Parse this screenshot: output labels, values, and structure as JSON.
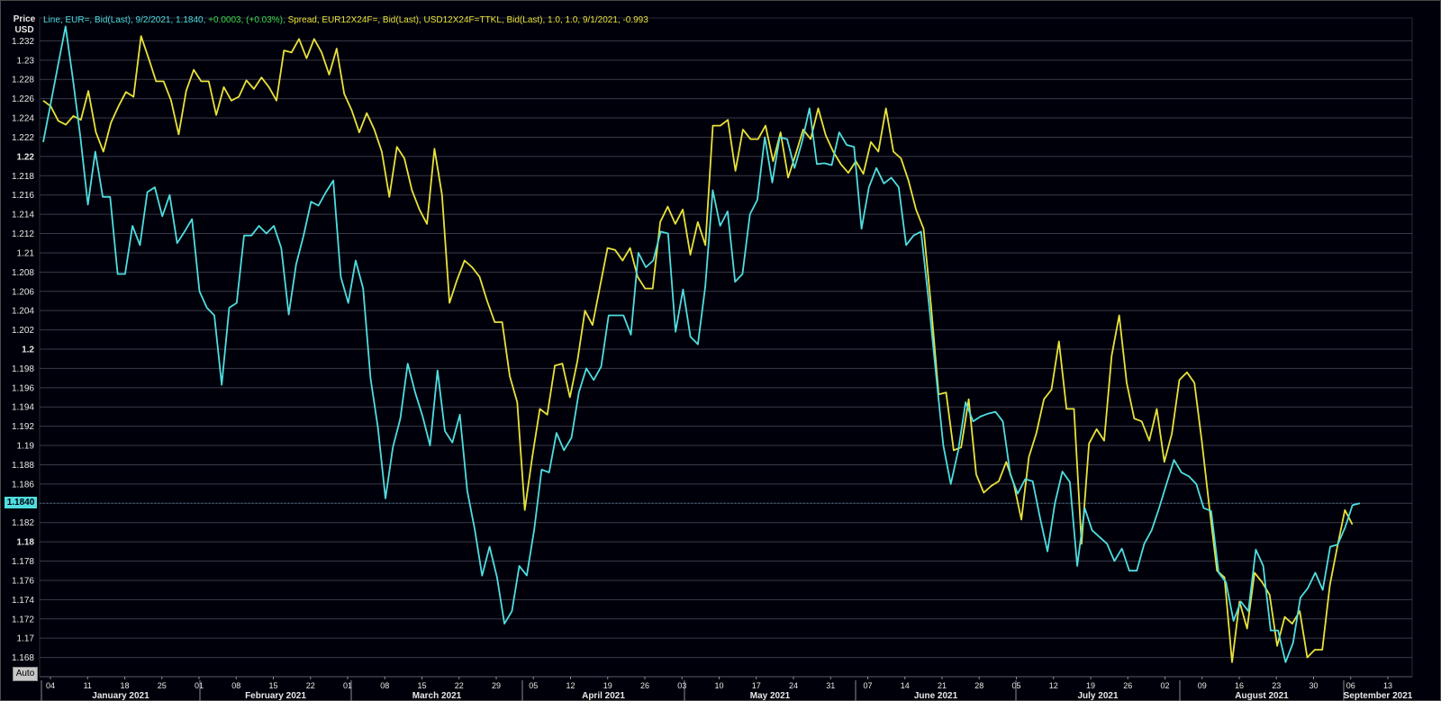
{
  "legend": {
    "series1_text": "Line, EUR=, Bid(Last), 9/2/2021, 1.1840,",
    "series1_change": "+0.0003, (+0.03%),",
    "series2_text": "Spread, EUR12X24F=, Bid(Last), USD12X24F=TTKL, Bid(Last),  1.0, 1.0, 9/1/2021, -0.993"
  },
  "price_axis_label": [
    "Price",
    "USD"
  ],
  "last_value_label": "1.1840",
  "auto_button_label": "Auto",
  "colors": {
    "background": "#00000a",
    "grid": "#3a3a4a",
    "series1": "#4fdde0",
    "series2": "#e8e23a",
    "change_positive": "#3dd64a",
    "axis_text": "#e8e8e8"
  },
  "chart_data": {
    "type": "line",
    "ylim": [
      1.166,
      1.234
    ],
    "y_ticks": [
      "1.168",
      "1.17",
      "1.172",
      "1.174",
      "1.176",
      "1.178",
      "1.18",
      "1.182",
      "1.184",
      "1.186",
      "1.188",
      "1.19",
      "1.192",
      "1.194",
      "1.196",
      "1.198",
      "1.2",
      "1.202",
      "1.204",
      "1.206",
      "1.208",
      "1.21",
      "1.212",
      "1.214",
      "1.216",
      "1.218",
      "1.22",
      "1.222",
      "1.224",
      "1.226",
      "1.228",
      "1.23",
      "1.232"
    ],
    "y_bold_ticks": [
      "1.2",
      "1.22",
      "1.18"
    ],
    "x_day_ticks": [
      "04",
      "11",
      "18",
      "25",
      "01",
      "08",
      "15",
      "22",
      "01",
      "08",
      "15",
      "22",
      "29",
      "05",
      "12",
      "19",
      "26",
      "03",
      "10",
      "17",
      "24",
      "31",
      "07",
      "14",
      "21",
      "28",
      "05",
      "12",
      "19",
      "26",
      "02",
      "09",
      "16",
      "23",
      "30",
      "06",
      "13"
    ],
    "x_month_labels": [
      "January 2021",
      "February 2021",
      "March 2021",
      "April 2021",
      "May 2021",
      "June 2021",
      "July 2021",
      "August 2021",
      "September 2021"
    ],
    "series": [
      {
        "name": "EUR=, Bid(Last)",
        "values": [
          1.2215,
          1.2255,
          1.2295,
          1.2335,
          1.228,
          1.222,
          1.215,
          1.2205,
          1.2158,
          1.2158,
          1.2078,
          1.2078,
          1.2128,
          1.2108,
          1.2163,
          1.2168,
          1.2138,
          1.216,
          1.211,
          1.2122,
          1.2135,
          1.206,
          1.2043,
          1.2035,
          1.1963,
          1.2043,
          1.2048,
          1.2118,
          1.2118,
          1.2128,
          1.212,
          1.2128,
          1.2105,
          1.2036,
          1.2088,
          1.2118,
          1.2153,
          1.2149,
          1.2163,
          1.2175,
          1.2075,
          1.2048,
          1.2092,
          1.2063,
          1.197,
          1.1918,
          1.1845,
          1.1898,
          1.1928,
          1.1985,
          1.1955,
          1.193,
          1.19,
          1.1978,
          1.1915,
          1.1903,
          1.1932,
          1.1853,
          1.1813,
          1.1765,
          1.1795,
          1.1763,
          1.1715,
          1.1728,
          1.1775,
          1.1765,
          1.1813,
          1.1875,
          1.1872,
          1.1913,
          1.1895,
          1.1908,
          1.1955,
          1.198,
          1.1968,
          1.1982,
          1.2035,
          1.2035,
          1.2035,
          1.2015,
          1.21,
          1.2085,
          1.2092,
          1.2122,
          1.212,
          1.2018,
          1.2062,
          1.2013,
          1.2005,
          1.2065,
          1.2165,
          1.2128,
          1.2143,
          1.207,
          1.2078,
          1.214,
          1.2155,
          1.222,
          1.2173,
          1.222,
          1.2218,
          1.2188,
          1.2215,
          1.225,
          1.2192,
          1.2193,
          1.2191,
          1.2225,
          1.2212,
          1.221,
          1.2125,
          1.2168,
          1.2188,
          1.2172,
          1.2178,
          1.2168,
          1.2108,
          1.2118,
          1.2122,
          1.2052,
          1.1975,
          1.19,
          1.186,
          1.1895,
          1.1945,
          1.1925,
          1.193,
          1.1933,
          1.1935,
          1.1925,
          1.187,
          1.185,
          1.1865,
          1.1863,
          1.1825,
          1.179,
          1.184,
          1.1873,
          1.1862,
          1.1775,
          1.1835,
          1.1812,
          1.1805,
          1.1798,
          1.178,
          1.1793,
          1.177,
          1.177,
          1.1798,
          1.1812,
          1.1835,
          1.186,
          1.1885,
          1.1872,
          1.1868,
          1.186,
          1.1835,
          1.1832,
          1.1768,
          1.1758,
          1.1718,
          1.1738,
          1.1728,
          1.1792,
          1.1775,
          1.1708,
          1.1708,
          1.1675,
          1.1695,
          1.1742,
          1.1752,
          1.1768,
          1.175,
          1.1795,
          1.1797,
          1.1815,
          1.1838,
          1.184
        ]
      },
      {
        "name": "Spread EUR12X24F= / USD12X24F=TTKL",
        "values": [
          1.2258,
          1.2252,
          1.2237,
          1.2233,
          1.2242,
          1.2238,
          1.2268,
          1.2225,
          1.2205,
          1.2235,
          1.2252,
          1.2267,
          1.2262,
          1.2325,
          1.2302,
          1.2278,
          1.2278,
          1.2258,
          1.2223,
          1.2268,
          1.229,
          1.2278,
          1.2278,
          1.2243,
          1.2272,
          1.2258,
          1.2262,
          1.2279,
          1.227,
          1.2282,
          1.2272,
          1.2258,
          1.231,
          1.2308,
          1.2322,
          1.2302,
          1.2322,
          1.2308,
          1.2285,
          1.2312,
          1.2265,
          1.2248,
          1.2225,
          1.2245,
          1.2228,
          1.2205,
          1.2158,
          1.221,
          1.2198,
          1.2165,
          1.2145,
          1.213,
          1.2208,
          1.216,
          1.2048,
          1.2072,
          1.2092,
          1.2085,
          1.2075,
          1.205,
          1.2028,
          1.2028,
          1.1972,
          1.1945,
          1.1833,
          1.1888,
          1.1938,
          1.1932,
          1.1983,
          1.1985,
          1.195,
          1.1988,
          1.204,
          1.2025,
          1.2065,
          1.2105,
          1.2103,
          1.2092,
          1.2105,
          1.2075,
          1.2063,
          1.2063,
          1.2132,
          1.2148,
          1.213,
          1.2145,
          1.2098,
          1.2132,
          1.2108,
          1.2232,
          1.2232,
          1.2238,
          1.2185,
          1.2228,
          1.2218,
          1.2218,
          1.2232,
          1.2195,
          1.2225,
          1.2178,
          1.2202,
          1.2228,
          1.2218,
          1.225,
          1.2222,
          1.2205,
          1.2192,
          1.2183,
          1.2195,
          1.2182,
          1.2215,
          1.2205,
          1.225,
          1.2205,
          1.2198,
          1.2175,
          1.2145,
          1.2125,
          1.2045,
          1.1953,
          1.1955,
          1.1895,
          1.1898,
          1.1948,
          1.187,
          1.1851,
          1.1858,
          1.1863,
          1.1883,
          1.186,
          1.1823,
          1.1888,
          1.1913,
          1.1948,
          1.1958,
          1.2008,
          1.1938,
          1.1938,
          1.1798,
          1.1902,
          1.1917,
          1.1905,
          1.1993,
          1.2035,
          1.1965,
          1.1928,
          1.1925,
          1.1905,
          1.1938,
          1.1883,
          1.1912,
          1.1968,
          1.1976,
          1.1965,
          1.1903,
          1.1835,
          1.177,
          1.1763,
          1.1675,
          1.1738,
          1.171,
          1.1768,
          1.1758,
          1.1745,
          1.1692,
          1.1722,
          1.1715,
          1.1728,
          1.168,
          1.1688,
          1.1688,
          1.1755,
          1.1795,
          1.1833,
          1.1818
        ]
      }
    ]
  }
}
